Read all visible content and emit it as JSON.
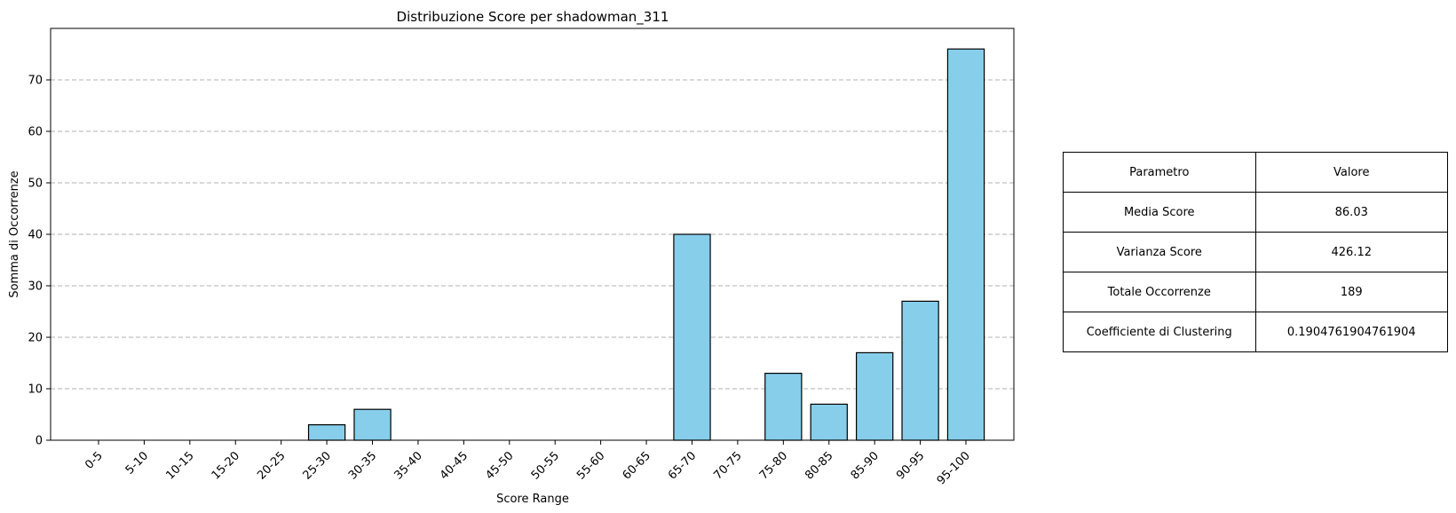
{
  "chart_data": {
    "type": "bar",
    "title": "Distribuzione Score per shadowman_311",
    "xlabel": "Score Range",
    "ylabel": "Somma di Occorrenze",
    "categories": [
      "0-5",
      "5-10",
      "10-15",
      "15-20",
      "20-25",
      "25-30",
      "30-35",
      "35-40",
      "40-45",
      "45-50",
      "50-55",
      "55-60",
      "60-65",
      "65-70",
      "70-75",
      "75-80",
      "80-85",
      "85-90",
      "90-95",
      "95-100"
    ],
    "values": [
      0,
      0,
      0,
      0,
      0,
      3,
      6,
      0,
      0,
      0,
      0,
      0,
      0,
      40,
      0,
      13,
      7,
      17,
      27,
      76
    ],
    "ylim": [
      0,
      80
    ],
    "yticks": [
      0,
      10,
      20,
      30,
      40,
      50,
      60,
      70
    ],
    "grid": "y-dashed",
    "bar_color": "#87ceeb",
    "edge_color": "#000000"
  },
  "table": {
    "header": [
      "Parametro",
      "Valore"
    ],
    "rows": [
      [
        "Media Score",
        "86.03"
      ],
      [
        "Varianza Score",
        "426.12"
      ],
      [
        "Totale Occorrenze",
        "189"
      ],
      [
        "Coefficiente di Clustering",
        "0.1904761904761904"
      ]
    ]
  }
}
